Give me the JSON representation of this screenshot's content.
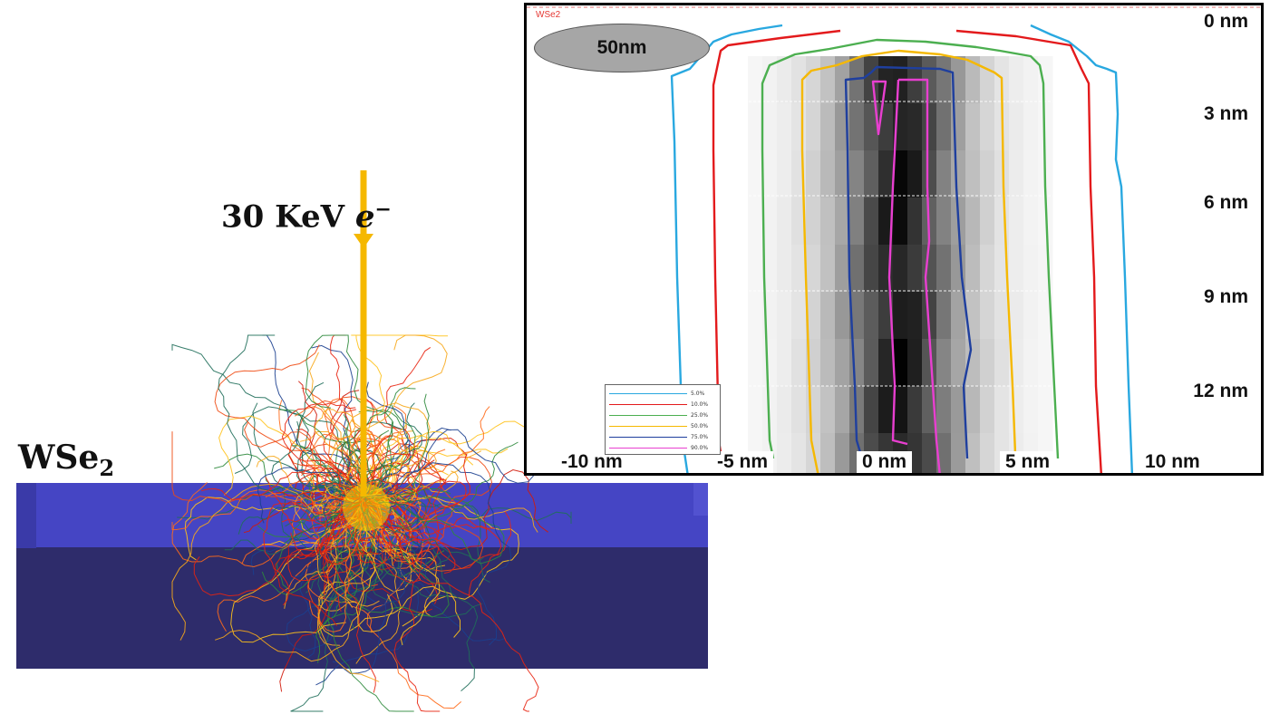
{
  "beam": {
    "label_main": "30 KeV",
    "label_symbol": "e",
    "label_sup": "−",
    "arrow_color": "#f5b800"
  },
  "material": {
    "label_main": "WSe",
    "label_sub": "2",
    "slab_top_color": "#4545c4",
    "slab_bottom_color": "#2e2c6b"
  },
  "panel": {
    "material_tag": "WSe2",
    "scale_label": "50nm",
    "depth_labels": [
      "0 nm",
      "3 nm",
      "6 nm",
      "9 nm",
      "12 nm"
    ],
    "width_labels": [
      "-10 nm",
      "-5 nm",
      "0 nm",
      "5 nm",
      "10 nm"
    ],
    "legend": [
      {
        "label": "5.0%",
        "color": "#29a8e0"
      },
      {
        "label": "10.0%",
        "color": "#e31a1c"
      },
      {
        "label": "25.0%",
        "color": "#4caf50"
      },
      {
        "label": "50.0%",
        "color": "#f5b800"
      },
      {
        "label": "75.0%",
        "color": "#1f3f9e"
      },
      {
        "label": "90.0%",
        "color": "#e83fd0"
      }
    ]
  }
}
